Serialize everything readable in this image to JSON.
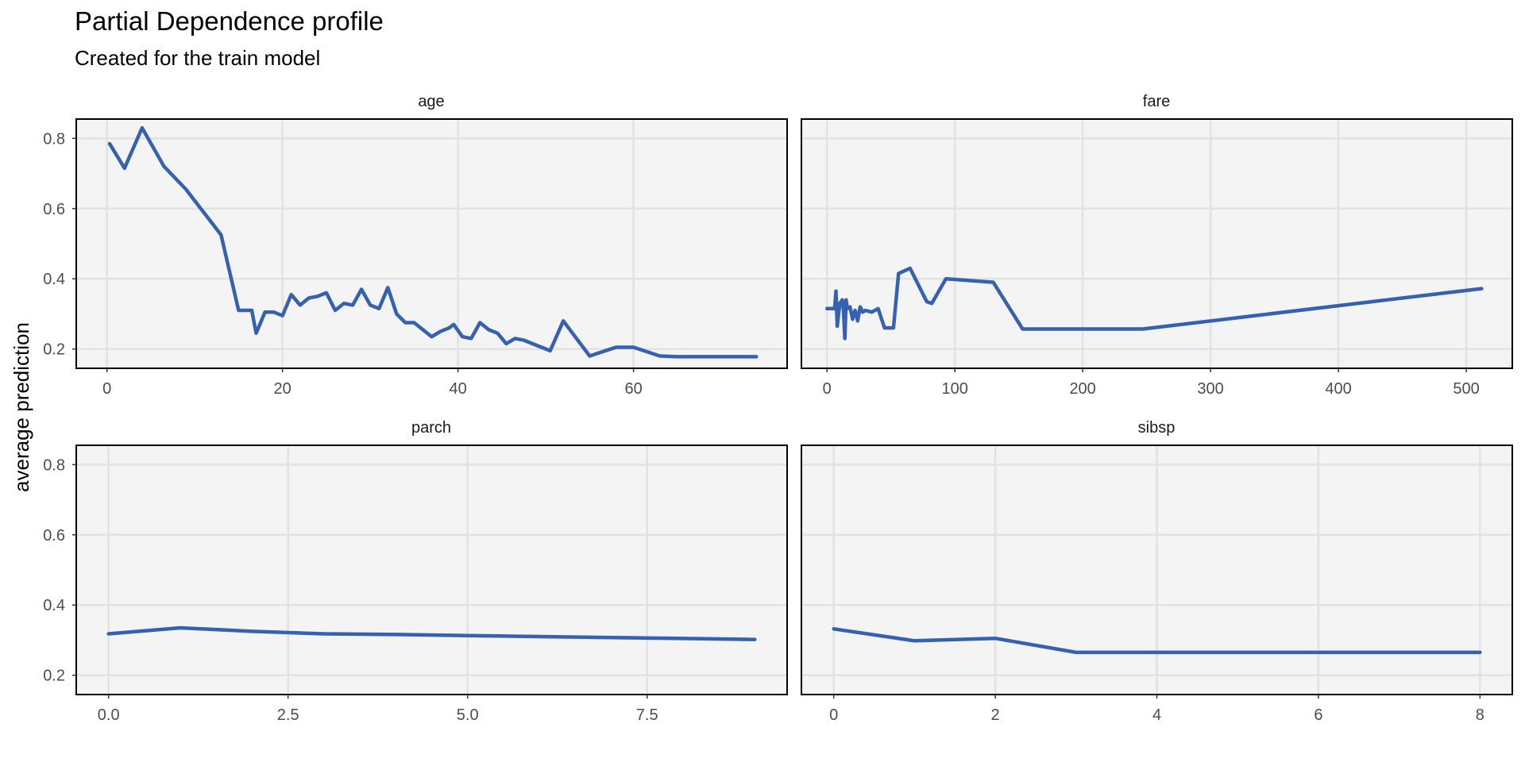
{
  "chart_data": {
    "type": "line",
    "title": "Partial Dependence profile",
    "subtitle": "Created for the train model",
    "ylabel": "average prediction",
    "ylim": [
      0.145,
      0.855
    ],
    "yticks": [
      0.2,
      0.4,
      0.6,
      0.8
    ],
    "ytick_labels": [
      "0.2",
      "0.4",
      "0.6",
      "0.8"
    ],
    "grid": true,
    "line_color": "#3461b0",
    "panel_background": "#f4f4f4",
    "panels": [
      {
        "label": "age",
        "xlim": [
          -3.5,
          77.5
        ],
        "xticks": [
          0,
          20,
          40,
          60
        ],
        "xtick_labels": [
          "0",
          "20",
          "40",
          "60"
        ],
        "x": [
          0.3,
          2,
          4,
          6.5,
          9,
          13,
          15,
          16.5,
          17,
          18,
          19,
          20,
          21,
          22,
          23,
          24,
          25,
          26,
          27,
          28,
          29,
          30,
          31,
          32,
          33,
          34,
          35,
          36,
          37,
          38,
          39,
          39.5,
          40.5,
          41.5,
          42.5,
          43.5,
          44.5,
          45.5,
          46.5,
          47.5,
          50.5,
          52,
          55,
          58,
          60,
          63,
          65,
          70,
          74
        ],
        "y": [
          0.785,
          0.715,
          0.83,
          0.72,
          0.655,
          0.525,
          0.31,
          0.31,
          0.245,
          0.305,
          0.305,
          0.295,
          0.355,
          0.325,
          0.345,
          0.35,
          0.36,
          0.31,
          0.33,
          0.325,
          0.37,
          0.325,
          0.315,
          0.375,
          0.3,
          0.275,
          0.275,
          0.255,
          0.235,
          0.25,
          0.26,
          0.27,
          0.235,
          0.23,
          0.275,
          0.255,
          0.245,
          0.215,
          0.23,
          0.225,
          0.195,
          0.28,
          0.18,
          0.205,
          0.205,
          0.18,
          0.178,
          0.178,
          0.178
        ]
      },
      {
        "label": "fare",
        "xlim": [
          -20,
          536
        ],
        "xticks": [
          0,
          100,
          200,
          300,
          400,
          500
        ],
        "xtick_labels": [
          "0",
          "100",
          "200",
          "300",
          "400",
          "500"
        ],
        "x": [
          0,
          6,
          7,
          8,
          10,
          12,
          13,
          14,
          15,
          16,
          18,
          20,
          22,
          24,
          26,
          28,
          30,
          35,
          40,
          45,
          52,
          56,
          65,
          78,
          82,
          93,
          130,
          153,
          200,
          247,
          512
        ],
        "y": [
          0.315,
          0.315,
          0.365,
          0.265,
          0.33,
          0.34,
          0.305,
          0.23,
          0.34,
          0.315,
          0.32,
          0.285,
          0.31,
          0.28,
          0.32,
          0.305,
          0.31,
          0.305,
          0.315,
          0.26,
          0.26,
          0.415,
          0.43,
          0.335,
          0.33,
          0.4,
          0.39,
          0.257,
          0.257,
          0.257,
          0.372
        ]
      },
      {
        "label": "parch",
        "xlim": [
          -0.45,
          9.45
        ],
        "xticks": [
          0,
          2.5,
          5,
          7.5
        ],
        "xtick_labels": [
          "0.0",
          "2.5",
          "5.0",
          "7.5"
        ],
        "x": [
          0,
          1,
          2,
          3,
          4,
          5,
          6,
          9
        ],
        "y": [
          0.318,
          0.335,
          0.325,
          0.318,
          0.316,
          0.313,
          0.31,
          0.302
        ]
      },
      {
        "label": "sibsp",
        "xlim": [
          -0.4,
          8.4
        ],
        "xticks": [
          0,
          2,
          4,
          6,
          8
        ],
        "xtick_labels": [
          "0",
          "2",
          "4",
          "6",
          "8"
        ],
        "x": [
          0,
          1,
          2,
          3,
          4,
          5,
          8
        ],
        "y": [
          0.332,
          0.298,
          0.305,
          0.265,
          0.265,
          0.265,
          0.265
        ]
      }
    ]
  }
}
